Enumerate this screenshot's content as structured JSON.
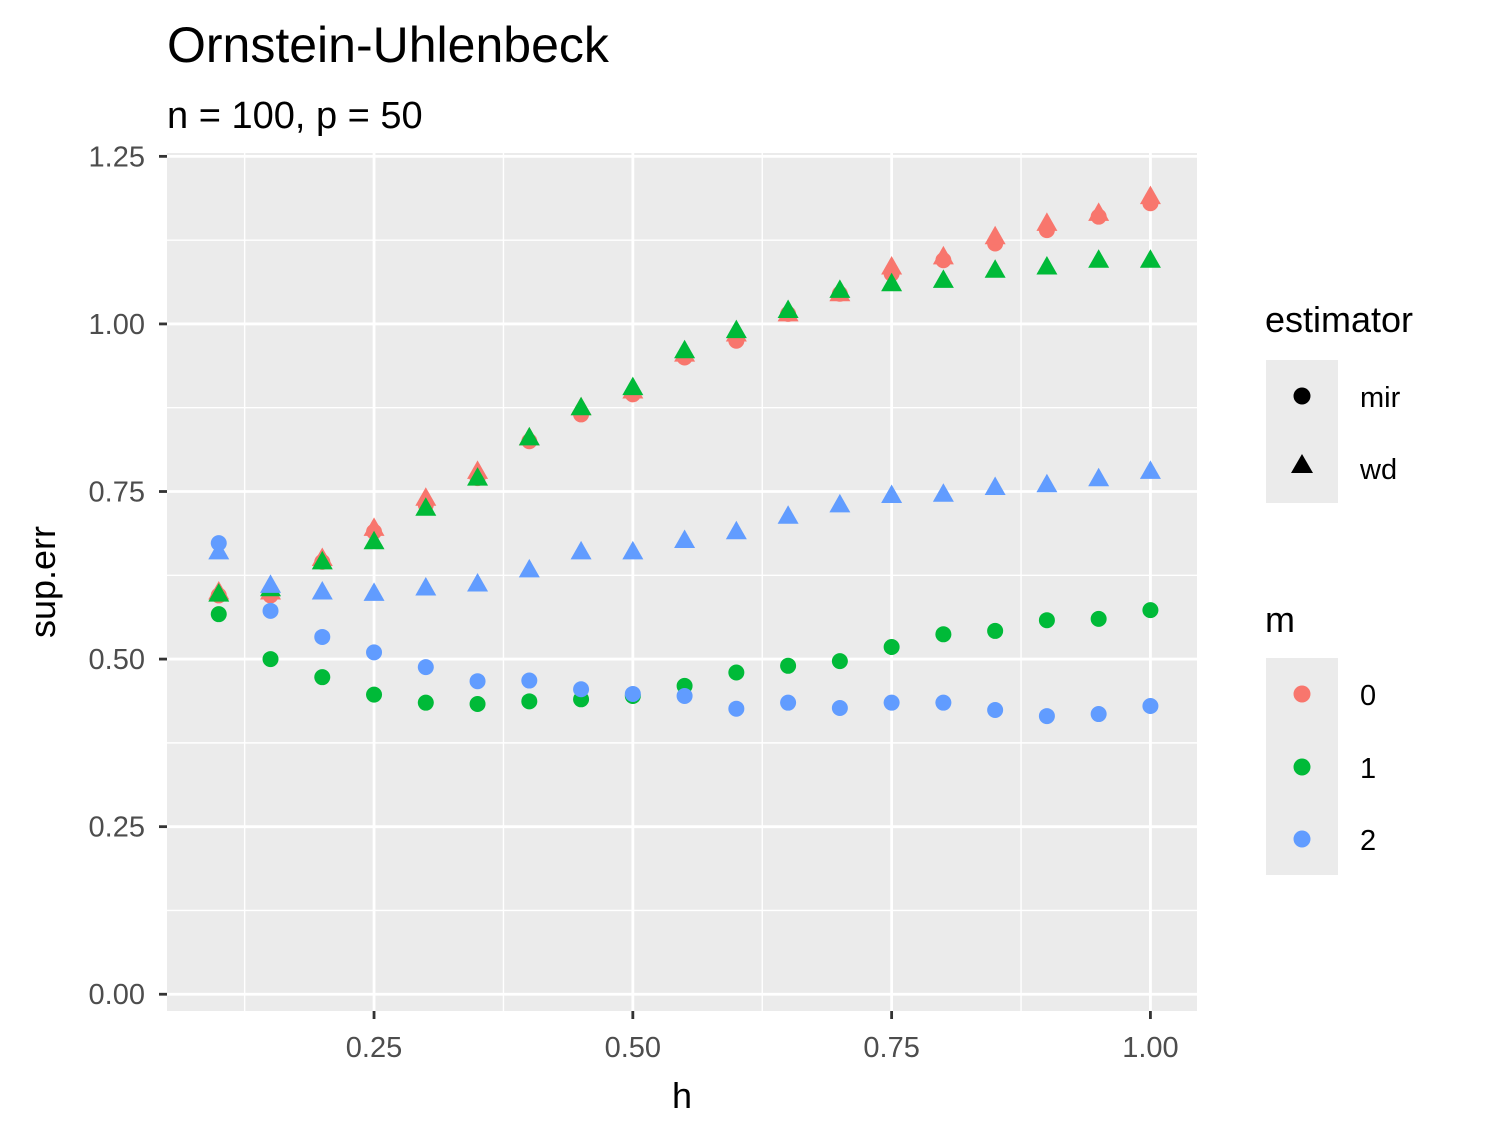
{
  "chart_data": {
    "type": "scatter",
    "title": "Ornstein-Uhlenbeck",
    "subtitle": "n = 100, p = 50",
    "xlabel": "h",
    "ylabel": "sup.err",
    "xlim": [
      0.05,
      1.045
    ],
    "ylim": [
      -0.025,
      1.255
    ],
    "x_ticks": [
      0.25,
      0.5,
      0.75,
      1.0
    ],
    "x_tick_labels": [
      "0.25",
      "0.50",
      "0.75",
      "1.00"
    ],
    "y_ticks": [
      0.0,
      0.25,
      0.5,
      0.75,
      1.0,
      1.25
    ],
    "y_tick_labels": [
      "0.00",
      "0.25",
      "0.50",
      "0.75",
      "1.00",
      "1.25"
    ],
    "grid": true,
    "legend_position": "right",
    "legends": {
      "estimator": {
        "title": "estimator",
        "items": [
          {
            "label": "mir",
            "shape": "circle"
          },
          {
            "label": "wd",
            "shape": "triangle"
          }
        ]
      },
      "m": {
        "title": "m",
        "items": [
          {
            "label": "0",
            "color": "#F8766D"
          },
          {
            "label": "1",
            "color": "#00BA38"
          },
          {
            "label": "2",
            "color": "#619CFF"
          }
        ]
      }
    },
    "x": [
      0.1,
      0.15,
      0.2,
      0.25,
      0.3,
      0.35,
      0.4,
      0.45,
      0.5,
      0.55,
      0.6,
      0.65,
      0.7,
      0.75,
      0.8,
      0.85,
      0.9,
      0.95,
      1.0
    ],
    "series": [
      {
        "m": "0",
        "estimator": "mir",
        "color": "#F8766D",
        "shape": "circle",
        "values": [
          0.595,
          0.595,
          0.645,
          0.69,
          0.73,
          0.77,
          0.825,
          0.865,
          0.895,
          0.95,
          0.975,
          1.015,
          1.045,
          1.075,
          1.095,
          1.12,
          1.14,
          1.16,
          1.18
        ]
      },
      {
        "m": "0",
        "estimator": "wd",
        "color": "#F8766D",
        "shape": "triangle",
        "values": [
          0.6,
          0.6,
          0.65,
          0.695,
          0.74,
          0.78,
          0.83,
          0.875,
          0.9,
          0.955,
          0.985,
          1.015,
          1.045,
          1.085,
          1.1,
          1.13,
          1.15,
          1.165,
          1.19
        ]
      },
      {
        "m": "1",
        "estimator": "mir",
        "color": "#00BA38",
        "shape": "circle",
        "values": [
          0.567,
          0.5,
          0.473,
          0.447,
          0.435,
          0.433,
          0.437,
          0.44,
          0.445,
          0.46,
          0.48,
          0.49,
          0.497,
          0.518,
          0.537,
          0.542,
          0.558,
          0.56,
          0.573
        ]
      },
      {
        "m": "1",
        "estimator": "wd",
        "color": "#00BA38",
        "shape": "triangle",
        "values": [
          0.597,
          0.605,
          0.645,
          0.675,
          0.725,
          0.77,
          0.83,
          0.875,
          0.905,
          0.96,
          0.99,
          1.02,
          1.05,
          1.06,
          1.065,
          1.08,
          1.085,
          1.095,
          1.095
        ]
      },
      {
        "m": "2",
        "estimator": "mir",
        "color": "#619CFF",
        "shape": "circle",
        "values": [
          0.673,
          0.572,
          0.533,
          0.51,
          0.488,
          0.467,
          0.468,
          0.455,
          0.448,
          0.445,
          0.426,
          0.435,
          0.427,
          0.435,
          0.435,
          0.424,
          0.415,
          0.418,
          0.43
        ]
      },
      {
        "m": "2",
        "estimator": "wd",
        "color": "#619CFF",
        "shape": "triangle",
        "values": [
          0.66,
          0.61,
          0.6,
          0.598,
          0.606,
          0.612,
          0.633,
          0.66,
          0.66,
          0.677,
          0.69,
          0.713,
          0.73,
          0.744,
          0.746,
          0.756,
          0.76,
          0.769,
          0.78
        ]
      }
    ]
  }
}
